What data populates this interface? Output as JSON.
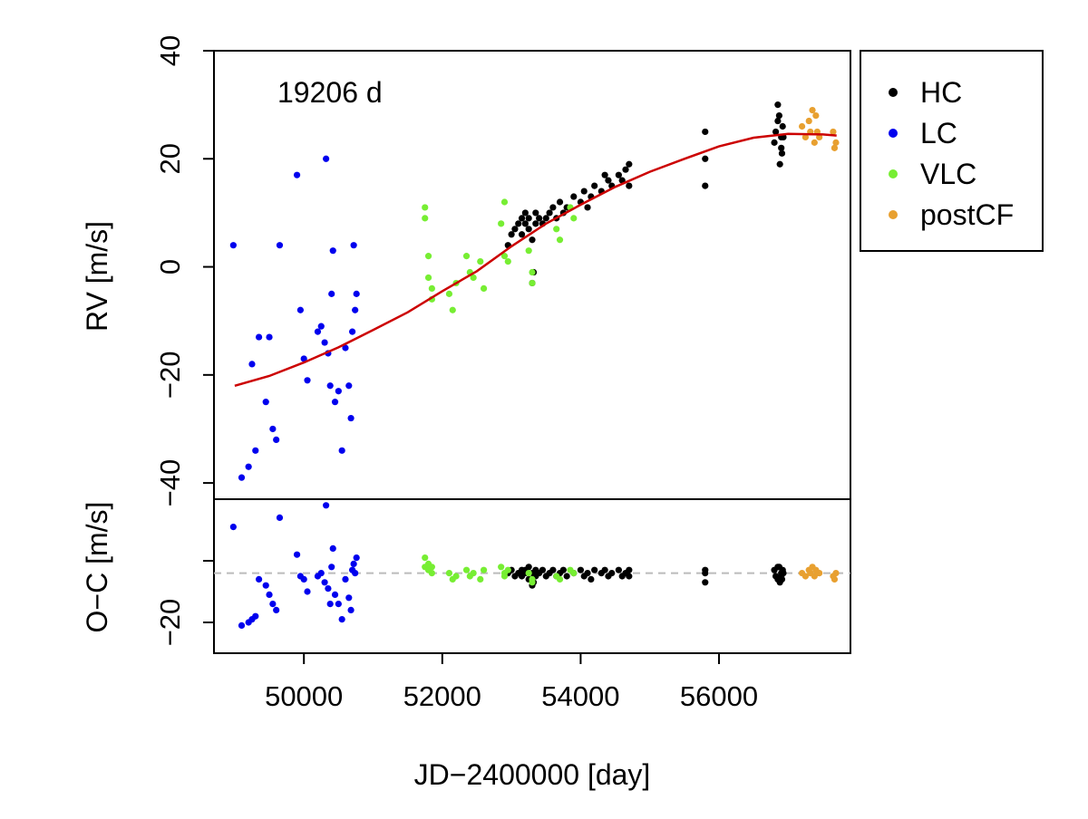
{
  "chart_data": {
    "type": "scatter",
    "annotation": "19206 d",
    "xlabel": "JD−2400000 [day]",
    "ylabel_top": "RV [m/s]",
    "ylabel_bottom": "O−C [m/s]",
    "xlim": [
      48700,
      57900
    ],
    "ylim_top": [
      -43,
      40
    ],
    "ylim_bottom": [
      -30,
      20
    ],
    "x_ticks": [
      50000,
      52000,
      54000,
      56000
    ],
    "x_tick_labels": [
      "50000",
      "52000",
      "54000",
      "56000"
    ],
    "y_ticks_top": [
      -40,
      -20,
      0,
      20,
      40
    ],
    "y_tick_labels_top": [
      "−40",
      "−20",
      "0",
      "20",
      "40"
    ],
    "y_ticks_bottom": [
      -20
    ],
    "y_tick_labels_bottom": [
      "−20"
    ],
    "residual_reference": -4,
    "model_curve": {
      "name": "Keplerian fit",
      "color": "#cc0000",
      "x": [
        49000,
        49500,
        50000,
        50500,
        51000,
        51500,
        52000,
        52500,
        53000,
        53500,
        54000,
        54500,
        55000,
        55500,
        56000,
        56500,
        57000,
        57500,
        57700
      ],
      "y": [
        -22,
        -20.2,
        -17.7,
        -14.9,
        -11.7,
        -8.4,
        -4.5,
        -0.8,
        3.8,
        8.0,
        11.5,
        14.8,
        17.6,
        20.0,
        22.3,
        23.9,
        24.6,
        24.5,
        24.3
      ]
    },
    "legend": {
      "position": "outside top-right",
      "entries": [
        {
          "label": "HC",
          "color": "#000000"
        },
        {
          "label": "LC",
          "color": "#0000ee"
        },
        {
          "label": "VLC",
          "color": "#77ee33"
        },
        {
          "label": "postCF",
          "color": "#e8a030"
        }
      ]
    },
    "series": [
      {
        "name": "HC",
        "color": "#000000",
        "x": [
          52950,
          53000,
          53050,
          53100,
          53150,
          53150,
          53200,
          53200,
          53250,
          53250,
          53300,
          53300,
          53320,
          53350,
          53350,
          53400,
          53450,
          53500,
          53550,
          53600,
          53650,
          53700,
          53750,
          53800,
          53900,
          54000,
          54050,
          54100,
          54150,
          54200,
          54300,
          54350,
          54400,
          54450,
          54550,
          54600,
          54650,
          54700,
          54700,
          55800,
          55800,
          55800,
          56800,
          56820,
          56850,
          56870,
          56900,
          56900,
          56920,
          56850,
          56880,
          56910,
          56930
        ],
        "y": [
          4,
          6,
          7,
          8,
          6,
          9,
          8,
          10,
          7,
          9,
          -3,
          5,
          -1,
          8,
          10,
          9,
          8,
          9,
          10,
          11,
          9,
          12,
          10,
          11,
          13,
          12,
          14,
          11,
          13,
          15,
          14,
          17,
          16,
          15,
          17,
          16,
          18,
          19,
          15,
          25,
          20,
          15,
          23,
          25,
          27,
          28,
          24,
          22,
          26,
          30,
          19,
          21,
          24
        ],
        "res_y": [
          -4,
          -3,
          -5,
          -4,
          -3,
          -5,
          -4,
          -3,
          -6,
          -2,
          -8,
          -4,
          -7,
          -3,
          -5,
          -4,
          -3,
          -5,
          -4,
          -3,
          -5,
          -4,
          -3,
          -5,
          -4,
          -3,
          -5,
          -4,
          -6,
          -3,
          -4,
          -3,
          -5,
          -4,
          -3,
          -5,
          -4,
          -3,
          -5,
          -4,
          -7,
          -3,
          -3,
          -5,
          -6,
          -2,
          -4,
          -5,
          -3,
          -2,
          -7,
          -6,
          -4
        ]
      },
      {
        "name": "LC",
        "color": "#0000ee",
        "x": [
          48980,
          49100,
          49200,
          49250,
          49300,
          49350,
          49450,
          49500,
          49550,
          49600,
          49650,
          49900,
          49950,
          50000,
          50050,
          50200,
          50250,
          50300,
          50320,
          50350,
          50380,
          50400,
          50420,
          50450,
          50500,
          50550,
          50600,
          50650,
          50680,
          50700,
          50720,
          50740,
          50760
        ],
        "y": [
          4,
          -39,
          -37,
          -18,
          -34,
          -13,
          -25,
          -13,
          -30,
          -32,
          4,
          17,
          -8,
          -17,
          -21,
          -12,
          -11,
          -14,
          20,
          -16,
          -22,
          -5,
          3,
          -25,
          -23,
          -34,
          -15,
          -22,
          -28,
          -12,
          4,
          -8,
          -5
        ],
        "res_y": [
          11,
          -21,
          -20,
          -19,
          -18,
          -6,
          -8,
          -11,
          -14,
          -16,
          14,
          2,
          -5,
          -6,
          -10,
          -5,
          -4,
          -7,
          18,
          -9,
          -14,
          -2,
          4,
          -11,
          -14,
          -19,
          -6,
          -12,
          -16,
          -3,
          -1,
          -4,
          1
        ]
      },
      {
        "name": "VLC",
        "color": "#77ee33",
        "x": [
          51750,
          51750,
          51800,
          51800,
          51850,
          51850,
          52100,
          52150,
          52200,
          52350,
          52400,
          52450,
          52550,
          52600,
          52850,
          52900,
          52900,
          52950,
          53250,
          53300,
          53300,
          53650,
          53700,
          53850,
          53900
        ],
        "y": [
          11,
          9,
          2,
          -2,
          -4,
          -6,
          -5,
          -8,
          -3,
          2,
          -1,
          -2,
          1,
          -4,
          8,
          2,
          12,
          1,
          3,
          -1,
          -3,
          7,
          5,
          11,
          9
        ],
        "res_y": [
          1,
          -2,
          -1,
          -3,
          -2,
          -4,
          -4,
          -6,
          -5,
          -3,
          -5,
          -4,
          -6,
          -3,
          -2,
          -4,
          -5,
          -3,
          -4,
          -7,
          -6,
          -5,
          -6,
          -3,
          -4
        ]
      },
      {
        "name": "postCF",
        "color": "#e8a030",
        "x": [
          57200,
          57250,
          57300,
          57320,
          57350,
          57380,
          57400,
          57420,
          57450,
          57650,
          57670,
          57690
        ],
        "y": [
          26,
          24,
          27,
          25,
          29,
          23,
          28,
          25,
          24,
          25,
          22,
          23
        ],
        "res_y": [
          -4,
          -5,
          -3,
          -4,
          -2,
          -5,
          -3,
          -4,
          -4,
          -5,
          -6,
          -4
        ]
      }
    ]
  }
}
